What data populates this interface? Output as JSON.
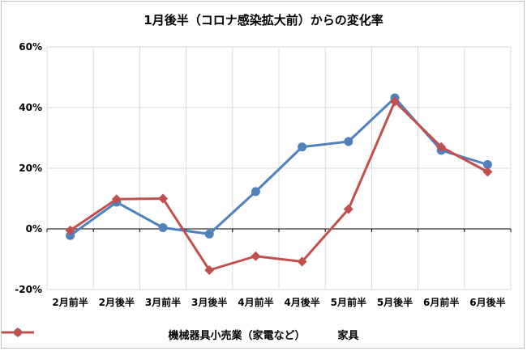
{
  "chart_data": {
    "type": "line",
    "title": "1月後半（コロナ感染拡大前）からの変化率",
    "categories": [
      "2月前半",
      "2月後半",
      "3月前半",
      "3月後半",
      "4月前半",
      "4月後半",
      "5月前半",
      "5月後半",
      "6月前半",
      "6月後半"
    ],
    "ylim": [
      -20,
      60
    ],
    "yticks": [
      "60%",
      "40%",
      "20%",
      "0%",
      "-20%"
    ],
    "ytick_values": [
      60,
      40,
      20,
      0,
      -20
    ],
    "grid": true,
    "legend_position": "bottom",
    "series": [
      {
        "name": "機械器具小売業（家電など）",
        "color": "#4f81bd",
        "marker": "circle",
        "values": [
          -2.2,
          8.8,
          0.4,
          -1.7,
          12.3,
          27.0,
          28.8,
          43.2,
          25.9,
          21.2
        ]
      },
      {
        "name": "家具",
        "color": "#c0504d",
        "marker": "diamond",
        "values": [
          -0.5,
          9.8,
          10.0,
          -13.6,
          -9.0,
          -10.8,
          6.5,
          42.0,
          27.0,
          18.8
        ]
      }
    ]
  }
}
